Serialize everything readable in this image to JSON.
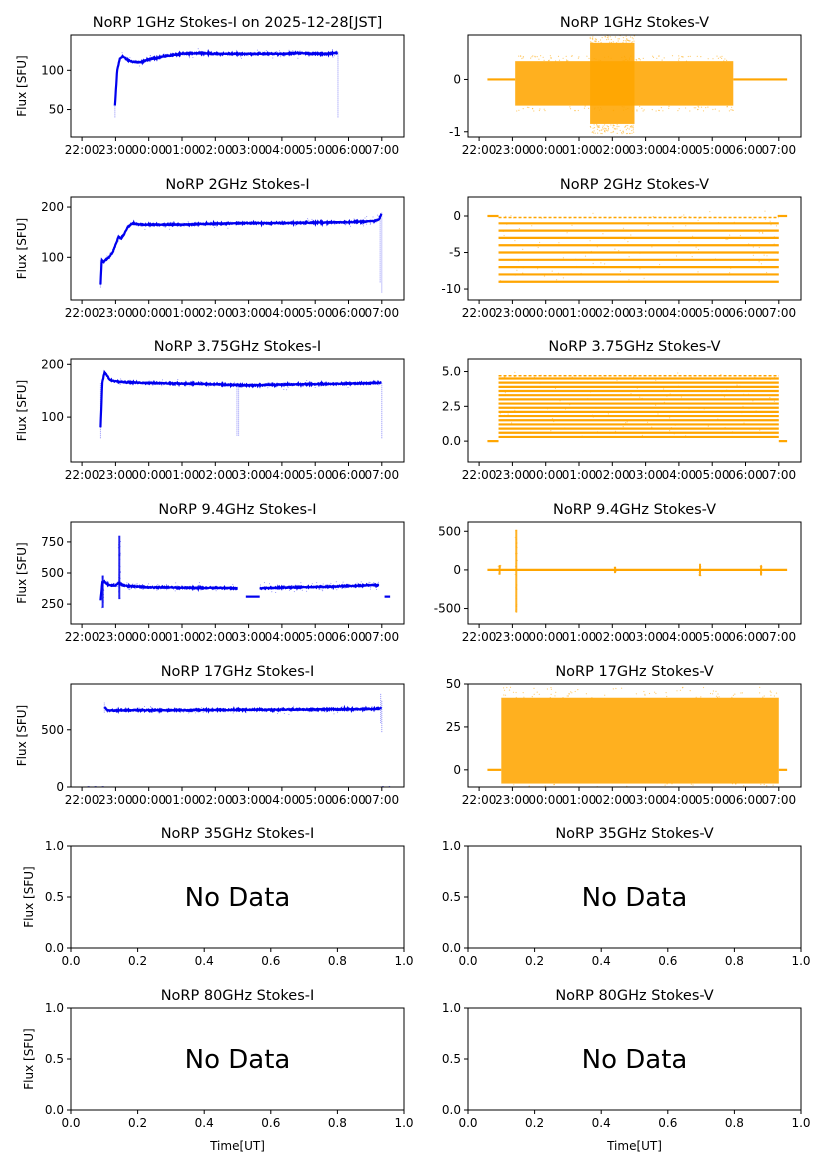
{
  "figure": {
    "ylabel": "Flux [SFU]",
    "xlabel": "Time[UT]",
    "no_data_text": "No Data",
    "time_ticks": [
      "22:00",
      "23:00",
      "00:00",
      "01:00",
      "02:00",
      "03:00",
      "04:00",
      "05:00",
      "06:00",
      "07:00"
    ],
    "colors": {
      "stokes_i": "#0000ee",
      "stokes_v": "#ffa500",
      "axes": "#000000",
      "background": "#ffffff"
    }
  },
  "chart_data": [
    {
      "type": "scatter",
      "title": "NoRP 1GHz Stokes-I on 2025-12-28[JST]",
      "xlabel": "",
      "ylabel": "Flux [SFU]",
      "xlim": [
        "21:40",
        "07:40"
      ],
      "ylim": [
        15,
        145
      ],
      "yticks": [
        50,
        100
      ],
      "series": [
        {
          "x": [
            "22:59",
            "23:03",
            "23:08",
            "23:13",
            "23:20",
            "23:30",
            "23:45",
            "00:00",
            "00:15",
            "00:30",
            "01:00",
            "01:30",
            "02:00",
            "02:30",
            "03:00",
            "03:30",
            "04:00",
            "04:30",
            "05:00",
            "05:20",
            "05:35",
            "05:41"
          ],
          "y": [
            55,
            100,
            115,
            118,
            114,
            111,
            110,
            114,
            116,
            118,
            121,
            122,
            121,
            121,
            121,
            121,
            121,
            122,
            121,
            121,
            122,
            123
          ]
        }
      ],
      "spikes": [
        [
          "22:59",
          40,
          55
        ],
        [
          "05:41",
          40,
          123
        ]
      ]
    },
    {
      "type": "scatter",
      "title": "NoRP 1GHz Stokes-V",
      "xlabel": "",
      "ylabel": "",
      "xlim": [
        "21:40",
        "07:40"
      ],
      "ylim": [
        -1.1,
        0.85
      ],
      "yticks": [
        -1,
        0
      ],
      "baseline": {
        "y": 0,
        "ranges": [
          [
            "22:15",
            "23:05"
          ],
          [
            "05:38",
            "07:15"
          ]
        ]
      },
      "bands": [
        {
          "start": "23:05",
          "end": "05:38",
          "low": -0.5,
          "high": 0.35
        },
        {
          "start": "01:20",
          "end": "02:40",
          "low": -0.85,
          "high": 0.7
        }
      ]
    },
    {
      "type": "scatter",
      "title": "NoRP 2GHz Stokes-I",
      "xlabel": "",
      "ylabel": "Flux [SFU]",
      "xlim": [
        "21:40",
        "07:40"
      ],
      "ylim": [
        15,
        220
      ],
      "yticks": [
        100,
        200
      ],
      "series": [
        {
          "x": [
            "22:33",
            "22:35",
            "22:38",
            "22:42",
            "22:48",
            "22:55",
            "23:00",
            "23:05",
            "23:10",
            "23:15",
            "23:22",
            "23:30",
            "23:45",
            "00:00",
            "01:00",
            "02:00",
            "03:00",
            "04:00",
            "05:00",
            "06:00",
            "06:45",
            "06:55",
            "07:00"
          ],
          "y": [
            45,
            95,
            90,
            95,
            100,
            110,
            125,
            140,
            138,
            145,
            160,
            167,
            165,
            165,
            165,
            167,
            168,
            168,
            169,
            170,
            172,
            175,
            188
          ]
        }
      ],
      "spikes": [
        [
          "22:33",
          40,
          95
        ],
        [
          "06:57",
          50,
          180
        ],
        [
          "07:00",
          30,
          190
        ]
      ]
    },
    {
      "type": "scatter",
      "title": "NoRP 2GHz Stokes-V",
      "xlabel": "",
      "ylabel": "",
      "xlim": [
        "21:40",
        "07:40"
      ],
      "ylim": [
        -11.5,
        2.6
      ],
      "yticks": [
        -10,
        -5,
        0
      ],
      "baseline": {
        "y": 0,
        "ranges": [
          [
            "22:15",
            "22:35"
          ],
          [
            "06:58",
            "07:15"
          ]
        ]
      },
      "levels": {
        "start": "22:35",
        "end": "07:00",
        "from": -9,
        "to": -1,
        "step": 1,
        "top": -0.2
      }
    },
    {
      "type": "scatter",
      "title": "NoRP 3.75GHz Stokes-I",
      "xlabel": "",
      "ylabel": "Flux [SFU]",
      "xlim": [
        "21:40",
        "07:40"
      ],
      "ylim": [
        15,
        210
      ],
      "yticks": [
        100,
        200
      ],
      "series": [
        {
          "x": [
            "22:33",
            "22:36",
            "22:40",
            "22:45",
            "22:50",
            "23:00",
            "23:20",
            "23:45",
            "00:30",
            "01:30",
            "02:30",
            "03:00",
            "03:30",
            "04:30",
            "05:30",
            "06:30",
            "07:00"
          ],
          "y": [
            80,
            165,
            185,
            178,
            170,
            168,
            166,
            165,
            164,
            163,
            161,
            160,
            161,
            162,
            163,
            164,
            165
          ]
        }
      ],
      "spikes": [
        [
          "22:33",
          60,
          165
        ],
        [
          "02:39",
          65,
          160
        ],
        [
          "02:42",
          65,
          160
        ],
        [
          "07:00",
          60,
          165
        ]
      ]
    },
    {
      "type": "scatter",
      "title": "NoRP 3.75GHz Stokes-V",
      "xlabel": "",
      "ylabel": "",
      "xlim": [
        "21:40",
        "07:40"
      ],
      "ylim": [
        -1.5,
        5.9
      ],
      "yticks": [
        0.0,
        2.5,
        5.0
      ],
      "tick_format": "0.0",
      "baseline": {
        "y": 0,
        "ranges": [
          [
            "22:15",
            "22:35"
          ],
          [
            "07:00",
            "07:15"
          ]
        ]
      },
      "levels": {
        "start": "22:35",
        "end": "07:00",
        "from": 0.3,
        "to": 4.5,
        "step": 0.3,
        "top": 4.7
      }
    },
    {
      "type": "scatter",
      "title": "NoRP 9.4GHz Stokes-I",
      "xlabel": "",
      "ylabel": "Flux [SFU]",
      "xlim": [
        "21:40",
        "07:40"
      ],
      "ylim": [
        90,
        910
      ],
      "yticks": [
        250,
        500,
        750
      ],
      "series": [
        {
          "x": [
            "22:33",
            "22:36",
            "22:40",
            "22:45",
            "22:52",
            "23:00",
            "23:05",
            "23:12",
            "23:20",
            "23:40",
            "00:00",
            "00:30",
            "01:00",
            "01:30",
            "02:00",
            "02:30",
            "02:40"
          ],
          "y": [
            280,
            420,
            430,
            410,
            400,
            400,
            420,
            405,
            395,
            390,
            385,
            385,
            382,
            380,
            380,
            380,
            375
          ]
        },
        {
          "x": [
            "03:20",
            "03:40",
            "04:00",
            "04:30",
            "05:00",
            "05:30",
            "06:00",
            "06:30",
            "06:55"
          ],
          "y": [
            378,
            380,
            382,
            385,
            388,
            390,
            395,
            400,
            405
          ]
        }
      ],
      "segments": [
        {
          "x0": "02:55",
          "x1": "03:20",
          "y": 310
        },
        {
          "x0": "07:05",
          "x1": "07:15",
          "y": 310
        }
      ],
      "bursts": [
        {
          "t": "23:07",
          "low": 290,
          "high": 800
        },
        {
          "t": "22:37",
          "low": 220,
          "high": 480
        }
      ]
    },
    {
      "type": "scatter",
      "title": "NoRP 9.4GHz Stokes-V",
      "xlabel": "",
      "ylabel": "",
      "xlim": [
        "21:40",
        "07:40"
      ],
      "ylim": [
        -700,
        620
      ],
      "yticks": [
        -500,
        0,
        500
      ],
      "baseline": {
        "y": 0,
        "ranges": [
          [
            "22:15",
            "07:15"
          ]
        ]
      },
      "bursts": [
        {
          "t": "23:07",
          "low": -550,
          "high": 520
        },
        {
          "t": "22:37",
          "low": -60,
          "high": 60
        },
        {
          "t": "02:05",
          "low": -40,
          "high": 40
        },
        {
          "t": "04:38",
          "low": -80,
          "high": 80
        },
        {
          "t": "06:28",
          "low": -70,
          "high": 60
        }
      ]
    },
    {
      "type": "scatter",
      "title": "NoRP 17GHz Stokes-I",
      "xlabel": "",
      "ylabel": "Flux [SFU]",
      "xlim": [
        "21:40",
        "07:40"
      ],
      "ylim": [
        0,
        900
      ],
      "yticks": [
        0,
        500
      ],
      "series": [
        {
          "x": [
            "22:40",
            "22:45",
            "23:00",
            "23:30",
            "00:00",
            "01:00",
            "02:00",
            "03:00",
            "04:00",
            "05:00",
            "06:00",
            "06:50",
            "07:00"
          ],
          "y": [
            700,
            670,
            668,
            672,
            670,
            672,
            673,
            675,
            676,
            678,
            680,
            682,
            690
          ]
        }
      ],
      "spikes": [
        [
          "22:40",
          650,
          740
        ],
        [
          "06:58",
          560,
          820
        ],
        [
          "07:00",
          480,
          760
        ]
      ],
      "zero_line": {
        "y": 0,
        "ranges": [
          [
            "22:10",
            "22:40"
          ],
          [
            "07:00",
            "07:15"
          ]
        ]
      }
    },
    {
      "type": "scatter",
      "title": "NoRP 17GHz Stokes-V",
      "xlabel": "",
      "ylabel": "",
      "xlim": [
        "21:40",
        "07:40"
      ],
      "ylim": [
        -10,
        50
      ],
      "yticks": [
        0,
        25,
        50
      ],
      "baseline": {
        "y": 0,
        "ranges": [
          [
            "22:15",
            "22:40"
          ],
          [
            "07:00",
            "07:15"
          ]
        ]
      },
      "bands": [
        {
          "start": "22:40",
          "end": "07:00",
          "low": -8,
          "high": 42
        }
      ]
    },
    {
      "type": "scatter",
      "title": "NoRP 35GHz Stokes-I",
      "xlabel": "",
      "ylabel": "Flux [SFU]",
      "xlim": [
        0,
        1
      ],
      "ylim": [
        0,
        1
      ],
      "xticks": [
        "0.0",
        "0.2",
        "0.4",
        "0.6",
        "0.8",
        "1.0"
      ],
      "yticks": [
        "0.0",
        "0.5",
        "1.0"
      ],
      "no_data": true
    },
    {
      "type": "scatter",
      "title": "NoRP 35GHz Stokes-V",
      "xlabel": "",
      "ylabel": "",
      "xlim": [
        0,
        1
      ],
      "ylim": [
        0,
        1
      ],
      "xticks": [
        "0.0",
        "0.2",
        "0.4",
        "0.6",
        "0.8",
        "1.0"
      ],
      "yticks": [
        "0.0",
        "0.5",
        "1.0"
      ],
      "no_data": true
    },
    {
      "type": "scatter",
      "title": "NoRP 80GHz Stokes-I",
      "xlabel": "Time[UT]",
      "ylabel": "Flux [SFU]",
      "xlim": [
        0,
        1
      ],
      "ylim": [
        0,
        1
      ],
      "xticks": [
        "0.0",
        "0.2",
        "0.4",
        "0.6",
        "0.8",
        "1.0"
      ],
      "yticks": [
        "0.0",
        "0.5",
        "1.0"
      ],
      "no_data": true
    },
    {
      "type": "scatter",
      "title": "NoRP 80GHz Stokes-V",
      "xlabel": "Time[UT]",
      "ylabel": "",
      "xlim": [
        0,
        1
      ],
      "ylim": [
        0,
        1
      ],
      "xticks": [
        "0.0",
        "0.2",
        "0.4",
        "0.6",
        "0.8",
        "1.0"
      ],
      "yticks": [
        "0.0",
        "0.5",
        "1.0"
      ],
      "no_data": true
    }
  ]
}
